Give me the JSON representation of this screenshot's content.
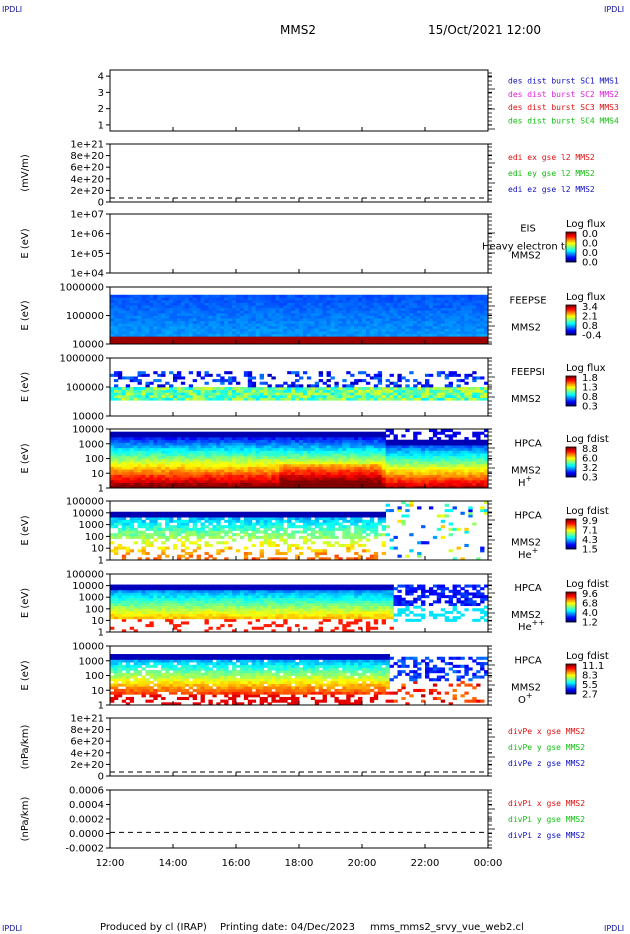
{
  "header": {
    "corner_label": "IPDLI",
    "spacecraft": "MMS2",
    "datetime": "15/Oct/2021 12:00"
  },
  "footer": {
    "produced": "Produced by cl (IRAP)",
    "printing": "Printing date: 04/Dec/2023",
    "file": "mms_mms2_srvy_vue_web2.cl"
  },
  "chart_data": {
    "type": "heatmap",
    "x_ticks": [
      "12:00",
      "14:00",
      "16:00",
      "18:00",
      "20:00",
      "22:00",
      "00:00"
    ],
    "x_range_hours": [
      12,
      24
    ],
    "panels": [
      {
        "id": "dist",
        "type": "line",
        "ylabel": "",
        "yticks": [
          "1",
          "2",
          "3",
          "4"
        ],
        "legend": [
          {
            "text": "des dist burst SC1 MMS1",
            "color": "#1010c0"
          },
          {
            "text": "des dist burst SC2 MMS2",
            "color": "#e020e0"
          },
          {
            "text": "des dist burst SC3 MMS3",
            "color": "#e01010"
          },
          {
            "text": "des dist burst SC4 MMS4",
            "color": "#10c010"
          }
        ]
      },
      {
        "id": "edi",
        "type": "line",
        "ylabel": "(mV/m)",
        "yticks": [
          "0",
          "2e+20",
          "4e+20",
          "6e+20",
          "8e+20",
          "1e+21"
        ],
        "zero_line": true,
        "legend": [
          {
            "text": "edi ex gse l2 MMS2",
            "color": "#e01010"
          },
          {
            "text": "edi ey gse l2 MMS2",
            "color": "#10c010"
          },
          {
            "text": "edi ez gse l2 MMS2",
            "color": "#1010c0"
          }
        ]
      },
      {
        "id": "eis",
        "type": "heatmap",
        "ylabel": "E (eV)",
        "yticks": [
          "1e+04",
          "1e+05",
          "1e+06",
          "1e+07"
        ],
        "instrument": "EIS",
        "sublabel": "MMS2",
        "overlay": "Heavy electron to",
        "cb_title": "Log flux",
        "cb_ticks": [
          "0.0",
          "0.0",
          "0.0",
          "0.0"
        ],
        "coverage": "none"
      },
      {
        "id": "feepse",
        "type": "heatmap",
        "ylabel": "E (eV)",
        "yticks": [
          "10000",
          "100000",
          "1000000"
        ],
        "instrument": "FEEPSE",
        "sublabel": "MMS2",
        "cb_title": "Log flux",
        "cb_ticks": [
          "3.4",
          "2.1",
          "0.8",
          "-0.4"
        ],
        "coverage": "full"
      },
      {
        "id": "feepsi",
        "type": "heatmap",
        "ylabel": "E (eV)",
        "yticks": [
          "10000",
          "100000",
          "1000000"
        ],
        "instrument": "FEEPSI",
        "sublabel": "MMS2",
        "cb_title": "Log flux",
        "cb_ticks": [
          "1.8",
          "1.3",
          "0.8",
          "0.3"
        ],
        "coverage": "band"
      },
      {
        "id": "hpca_h",
        "type": "heatmap",
        "ylabel": "E (eV)",
        "yticks": [
          "1",
          "10",
          "100",
          "1000",
          "10000"
        ],
        "instrument": "HPCA",
        "sublabel": "MMS2",
        "species": "H+",
        "cb_title": "Log fdist",
        "cb_ticks": [
          "8.8",
          "6.0",
          "3.2",
          "0.3"
        ],
        "coverage": "hpca_h"
      },
      {
        "id": "hpca_he",
        "type": "heatmap",
        "ylabel": "E (eV)",
        "yticks": [
          "1",
          "10",
          "100",
          "1000",
          "10000",
          "100000"
        ],
        "instrument": "HPCA",
        "sublabel": "MMS2",
        "species": "He+",
        "cb_title": "Log fdist",
        "cb_ticks": [
          "9.9",
          "7.1",
          "4.3",
          "1.5"
        ],
        "coverage": "hpca_he"
      },
      {
        "id": "hpca_hepp",
        "type": "heatmap",
        "ylabel": "E (eV)",
        "yticks": [
          "1",
          "10",
          "100",
          "1000",
          "10000",
          "100000"
        ],
        "instrument": "HPCA",
        "sublabel": "MMS2",
        "species": "He++",
        "cb_title": "Log fdist",
        "cb_ticks": [
          "9.6",
          "6.8",
          "4.0",
          "1.2"
        ],
        "coverage": "hpca_hepp"
      },
      {
        "id": "hpca_o",
        "type": "heatmap",
        "ylabel": "E (eV)",
        "yticks": [
          "1",
          "10",
          "100",
          "1000",
          "10000"
        ],
        "instrument": "HPCA",
        "sublabel": "MMS2",
        "species": "O+",
        "cb_title": "Log fdist",
        "cb_ticks": [
          "11.1",
          "8.3",
          "5.5",
          "2.7"
        ],
        "coverage": "hpca_o"
      },
      {
        "id": "divpe",
        "type": "line",
        "ylabel": "(nPa/km)",
        "yticks": [
          "0",
          "2e+20",
          "4e+20",
          "6e+20",
          "8e+20",
          "1e+21"
        ],
        "zero_line": true,
        "legend": [
          {
            "text": "divPe x gse MMS2",
            "color": "#e01010"
          },
          {
            "text": "divPe y gse MMS2",
            "color": "#10c010"
          },
          {
            "text": "divPe z gse MMS2",
            "color": "#1010c0"
          }
        ]
      },
      {
        "id": "divpi",
        "type": "line",
        "ylabel": "(nPa/km)",
        "yticks": [
          "-0.0002",
          "0.0000",
          "0.0002",
          "0.0004",
          "0.0006"
        ],
        "zero_line": true,
        "legend": [
          {
            "text": "divPi x gse MMS2",
            "color": "#e01010"
          },
          {
            "text": "divPi y gse MMS2",
            "color": "#10c010"
          },
          {
            "text": "divPi z gse MMS2",
            "color": "#1010c0"
          }
        ]
      }
    ]
  }
}
